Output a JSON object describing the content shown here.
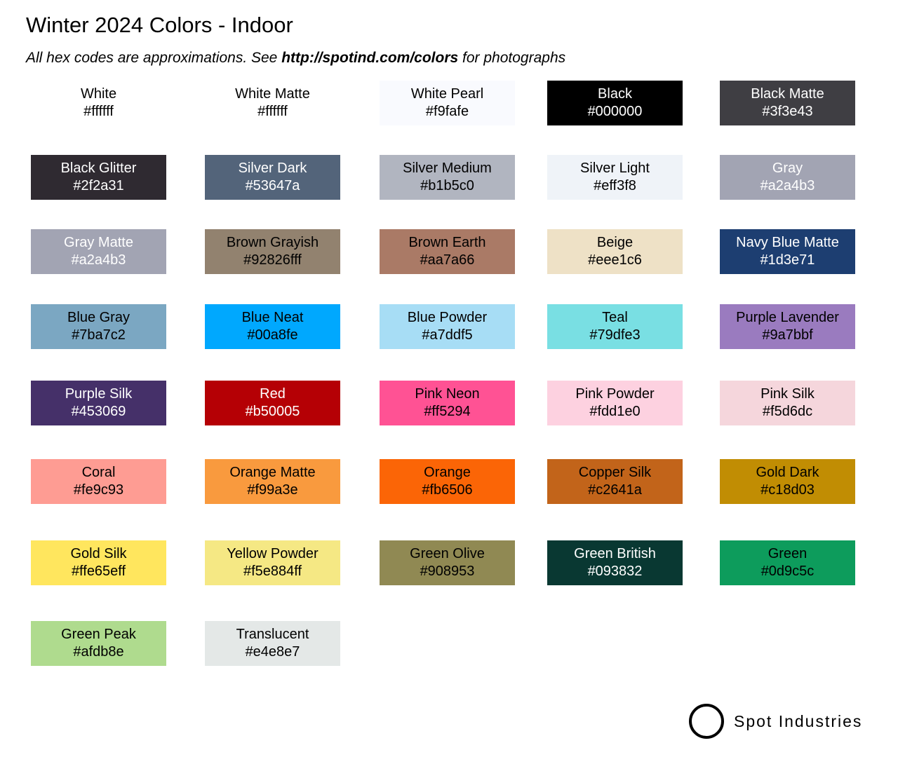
{
  "title": "Winter 2024 Colors - Indoor",
  "subtitle": {
    "pre": "All hex codes are approximations. See ",
    "link": "http://spotind.com/colors",
    "post": " for photographs"
  },
  "swatches": [
    {
      "name": "White",
      "hex": "#ffffff",
      "text": "#000"
    },
    {
      "name": "White Matte",
      "hex": "#ffffff",
      "text": "#000"
    },
    {
      "name": "White Pearl",
      "hex": "#f9fafe",
      "text": "#000"
    },
    {
      "name": "Black",
      "hex": "#000000",
      "text": "#fff"
    },
    {
      "name": "Black Matte",
      "hex": "#3f3e43",
      "text": "#fff"
    },
    {
      "name": "Black Glitter",
      "hex": "#2f2a31",
      "text": "#fff"
    },
    {
      "name": "Silver Dark",
      "hex": "#53647a",
      "text": "#fff"
    },
    {
      "name": "Silver Medium",
      "hex": "#b1b5c0",
      "text": "#000"
    },
    {
      "name": "Silver Light",
      "hex": "#eff3f8",
      "text": "#000"
    },
    {
      "name": "Gray",
      "hex": "#a2a4b3",
      "text": "#fff"
    },
    {
      "name": "Gray Matte",
      "hex": "#a2a4b3",
      "text": "#fff"
    },
    {
      "name": "Brown Grayish",
      "hex": "#92826fff",
      "text": "#000"
    },
    {
      "name": "Brown Earth",
      "hex": "#aa7a66",
      "text": "#000"
    },
    {
      "name": "Beige",
      "hex": "#eee1c6",
      "text": "#000"
    },
    {
      "name": "Navy Blue Matte",
      "hex": "#1d3e71",
      "text": "#fff"
    },
    {
      "name": "Blue Gray",
      "hex": "#7ba7c2",
      "text": "#000"
    },
    {
      "name": "Blue Neat",
      "hex": "#00a8fe",
      "text": "#000"
    },
    {
      "name": "Blue Powder",
      "hex": "#a7ddf5",
      "text": "#000"
    },
    {
      "name": "Teal",
      "hex": "#79dfe3",
      "text": "#000"
    },
    {
      "name": "Purple Lavender",
      "hex": "#9a7bbf",
      "text": "#000"
    },
    {
      "name": "Purple Silk",
      "hex": "#453069",
      "text": "#fff"
    },
    {
      "name": "Red",
      "hex": "#b50005",
      "text": "#fff"
    },
    {
      "name": "Pink Neon",
      "hex": "#ff5294",
      "text": "#000"
    },
    {
      "name": "Pink Powder",
      "hex": "#fdd1e0",
      "text": "#000"
    },
    {
      "name": "Pink Silk",
      "hex": "#f5d6dc",
      "text": "#000"
    },
    {
      "name": "Coral",
      "hex": "#fe9c93",
      "text": "#000"
    },
    {
      "name": "Orange Matte",
      "hex": "#f99a3e",
      "text": "#000"
    },
    {
      "name": "Orange",
      "hex": "#fb6506",
      "text": "#000"
    },
    {
      "name": "Copper Silk",
      "hex": "#c2641a",
      "text": "#000"
    },
    {
      "name": "Gold Dark",
      "hex": "#c18d03",
      "text": "#000"
    },
    {
      "name": "Gold Silk",
      "hex": "#ffe65eff",
      "text": "#000"
    },
    {
      "name": "Yellow Powder",
      "hex": "#f5e884ff",
      "text": "#000"
    },
    {
      "name": "Green Olive",
      "hex": "#908953",
      "text": "#000"
    },
    {
      "name": "Green British",
      "hex": "#093832",
      "text": "#fff"
    },
    {
      "name": "Green",
      "hex": "#0d9c5c",
      "text": "#000"
    },
    {
      "name": "Green Peak",
      "hex": "#afdb8e",
      "text": "#000"
    },
    {
      "name": "Translucent",
      "hex": "#e4e8e7",
      "text": "#000"
    }
  ],
  "brand": "Spot Industries"
}
